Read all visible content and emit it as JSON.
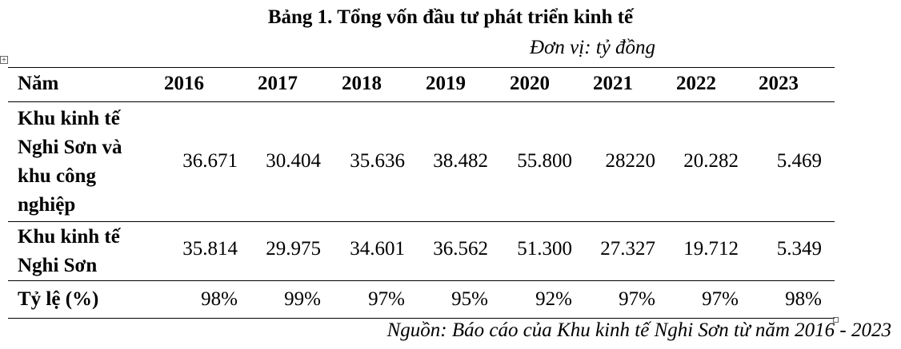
{
  "title": "Bảng 1. Tổng vốn đầu tư phát triển kinh tế",
  "unit": "Đơn vị: tỷ đồng",
  "table": {
    "header_label": "Năm",
    "years": [
      "2016",
      "2017",
      "2018",
      "2019",
      "2020",
      "2021",
      "2022",
      "2023"
    ],
    "rows": [
      {
        "label_lines": [
          "Khu kinh tế",
          "Nghi Sơn và",
          "khu công",
          "nghiệp"
        ],
        "values": [
          "36.671",
          "30.404",
          "35.636",
          "38.482",
          "55.800",
          "28220",
          "20.282",
          "5.469"
        ]
      },
      {
        "label_lines": [
          "Khu kinh tế",
          "Nghi Sơn"
        ],
        "values": [
          "35.814",
          "29.975",
          "34.601",
          "36.562",
          "51.300",
          "27.327",
          "19.712",
          "5.349"
        ]
      },
      {
        "label_lines": [
          "Tỷ lệ (%)"
        ],
        "values": [
          "98%",
          "99%",
          "97%",
          "95%",
          "92%",
          "97%",
          "97%",
          "98%"
        ]
      }
    ]
  },
  "source": "Nguồn: Báo cáo của Khu kinh tế Nghi Sơn từ năm 2016 - 2023"
}
